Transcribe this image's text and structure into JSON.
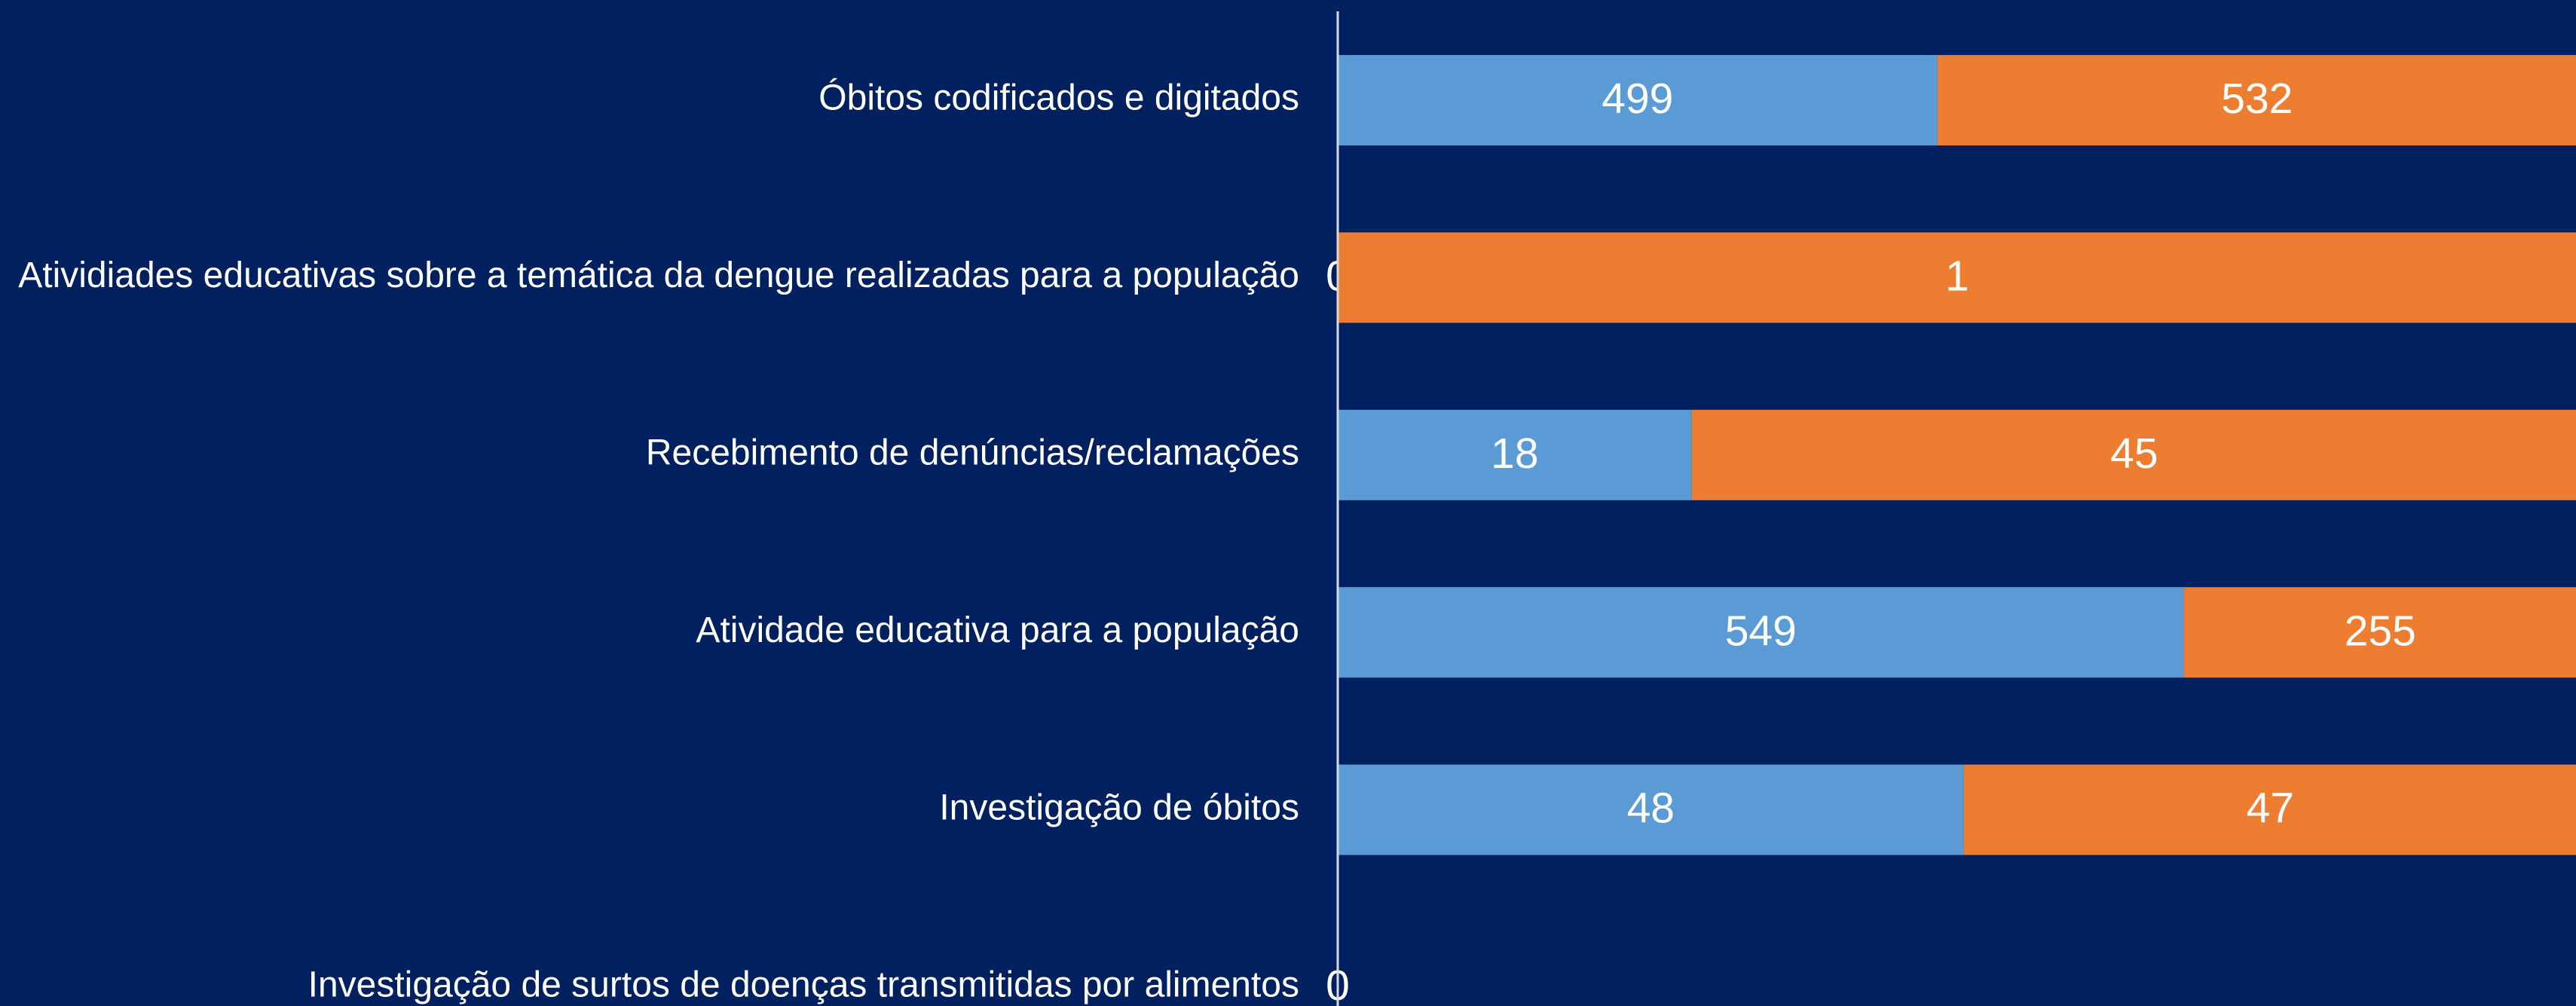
{
  "chart_data": {
    "type": "bar",
    "orientation": "horizontal",
    "stacked": "percent",
    "categories": [
      "Óbitos codificados e digitados",
      "Atividiades educativas sobre a temática da dengue realizadas para a população",
      "Recebimento de denúncias/reclamações",
      "Atividade educativa para a população",
      "Investigação de óbitos",
      "Investigação de surtos de doenças transmitidas por alimentos"
    ],
    "series": [
      {
        "color": "#5b9bd5",
        "values": [
          499,
          0,
          18,
          549,
          48,
          0
        ]
      },
      {
        "color": "#ed7d31",
        "values": [
          532,
          1,
          45,
          255,
          47,
          null
        ]
      }
    ],
    "background": "#002060"
  }
}
